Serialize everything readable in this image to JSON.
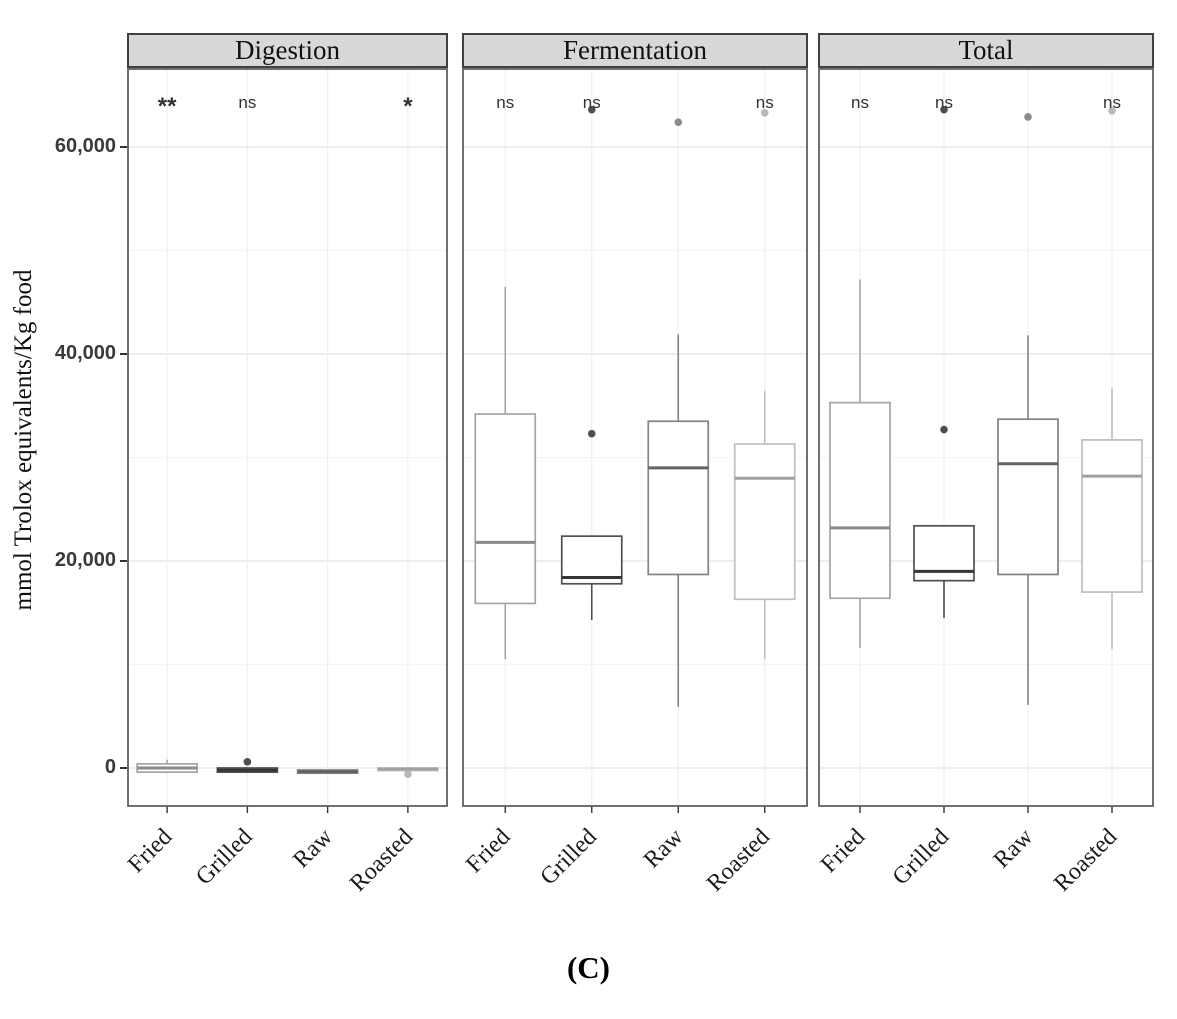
{
  "chart_data": {
    "type": "boxplot",
    "ylabel": "mmol Trolox equivalents/Kg food",
    "caption": "(C)",
    "yticks": [
      {
        "value": 0,
        "label": "0"
      },
      {
        "value": 20000,
        "label": "20,000"
      },
      {
        "value": 40000,
        "label": "40,000"
      },
      {
        "value": 60000,
        "label": "60,000"
      }
    ],
    "ylim": [
      -3700,
      67200
    ],
    "grid_minor": [
      10000,
      30000,
      50000
    ],
    "categories": [
      "Fried",
      "Grilled",
      "Raw",
      "Roasted"
    ],
    "groups": [
      {
        "name": "Fried",
        "color": "#a5a5a5",
        "median_color": "#8a8a8a",
        "point_color": "#a5a5a5"
      },
      {
        "name": "Grilled",
        "color": "#4f4f4f",
        "median_color": "#353535",
        "point_color": "#4f4f4f"
      },
      {
        "name": "Raw",
        "color": "#828282",
        "median_color": "#646464",
        "point_color": "#8a8a8a"
      },
      {
        "name": "Roasted",
        "color": "#bfbfbf",
        "median_color": "#a0a0a0",
        "point_color": "#b8b8b8"
      }
    ],
    "panels": [
      {
        "name": "Digestion",
        "boxes": [
          {
            "category": "Fried",
            "sig": "**",
            "whisker_low": -500,
            "q1": -400,
            "median": 0,
            "q3": 400,
            "whisker_high": 800,
            "outliers": []
          },
          {
            "category": "Grilled",
            "sig": "ns",
            "whisker_low": -400,
            "q1": -400,
            "median": -200,
            "q3": 0,
            "whisker_high": 0,
            "outliers": [
              600
            ]
          },
          {
            "category": "Raw",
            "sig": "",
            "whisker_low": -500,
            "q1": -500,
            "median": -350,
            "q3": -200,
            "whisker_high": -200,
            "outliers": []
          },
          {
            "category": "Roasted",
            "sig": "*",
            "whisker_low": -250,
            "q1": -250,
            "median": -100,
            "q3": 0,
            "whisker_high": 0,
            "outliers": [
              -600
            ]
          }
        ]
      },
      {
        "name": "Fermentation",
        "boxes": [
          {
            "category": "Fried",
            "sig": "ns",
            "whisker_low": 10500,
            "q1": 15900,
            "median": 21800,
            "q3": 34200,
            "whisker_high": 46500,
            "outliers": []
          },
          {
            "category": "Grilled",
            "sig": "ns",
            "whisker_low": 14300,
            "q1": 17800,
            "median": 18400,
            "q3": 22400,
            "whisker_high": 22400,
            "outliers": [
              32300,
              63600
            ]
          },
          {
            "category": "Raw",
            "sig": "",
            "whisker_low": 5900,
            "q1": 18700,
            "median": 29000,
            "q3": 33500,
            "whisker_high": 41900,
            "outliers": [
              62400
            ]
          },
          {
            "category": "Roasted",
            "sig": "ns",
            "whisker_low": 10500,
            "q1": 16300,
            "median": 28000,
            "q3": 31300,
            "whisker_high": 36400,
            "outliers": [
              63300
            ]
          }
        ]
      },
      {
        "name": "Total",
        "boxes": [
          {
            "category": "Fried",
            "sig": "ns",
            "whisker_low": 11600,
            "q1": 16400,
            "median": 23200,
            "q3": 35300,
            "whisker_high": 47200,
            "outliers": []
          },
          {
            "category": "Grilled",
            "sig": "ns",
            "whisker_low": 14500,
            "q1": 18100,
            "median": 19000,
            "q3": 23400,
            "whisker_high": 23400,
            "outliers": [
              32700,
              63600
            ]
          },
          {
            "category": "Raw",
            "sig": "",
            "whisker_low": 6100,
            "q1": 18700,
            "median": 29400,
            "q3": 33700,
            "whisker_high": 41800,
            "outliers": [
              62900
            ]
          },
          {
            "category": "Roasted",
            "sig": "ns",
            "whisker_low": 11500,
            "q1": 17000,
            "median": 28200,
            "q3": 31700,
            "whisker_high": 36700,
            "outliers": [
              63500
            ]
          }
        ]
      }
    ]
  }
}
